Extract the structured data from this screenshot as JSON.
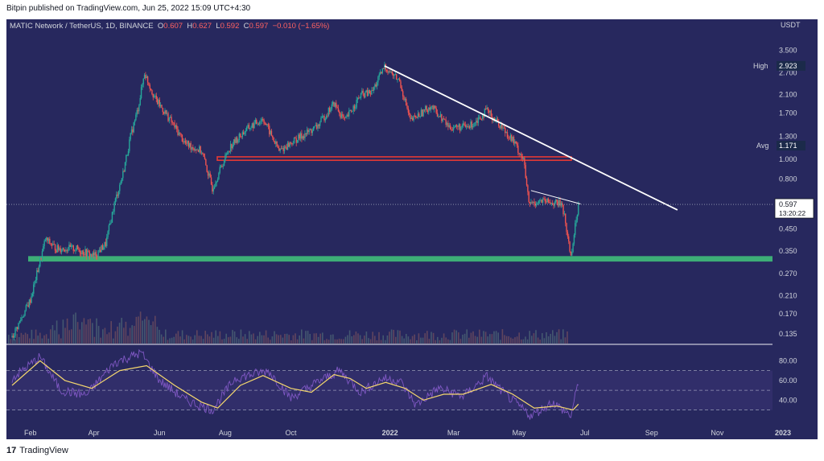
{
  "caption": "Bitpin published on TradingView.com, Jun 25, 2022 15:09 UTC+4:30",
  "brand": {
    "logo": "17",
    "name": "TradingView"
  },
  "symbol": {
    "name": "MATIC Network / TetherUS, 1D, BINANCE",
    "o_label": "O",
    "o": "0.607",
    "h_label": "H",
    "h": "0.627",
    "l_label": "L",
    "l": "0.592",
    "c_label": "C",
    "c": "0.597",
    "change": "−0.010 (−1.65%)"
  },
  "price_axis": {
    "unit": "USDT",
    "ticks": [
      "3.500",
      "2.700",
      "2.100",
      "1.700",
      "1.300",
      "1.000",
      "0.800",
      "0.600",
      "0.450",
      "0.350",
      "0.270",
      "0.210",
      "0.170",
      "0.135"
    ],
    "high_label": "High",
    "high_value": "2.923",
    "avg_label": "Avg",
    "avg_value": "1.171",
    "last_price": "0.597",
    "countdown": "13:20:22"
  },
  "rsi_axis": {
    "ticks": [
      "80.00",
      "60.00",
      "40.00"
    ]
  },
  "time_axis": {
    "ticks": [
      "Feb",
      "Apr",
      "Jun",
      "Aug",
      "Oct",
      "2022",
      "Mar",
      "May",
      "Jul",
      "Sep",
      "Nov",
      "2023"
    ]
  },
  "colors": {
    "background": "#27285e",
    "up": "#26a69a",
    "down": "#ef5350",
    "trendline": "#ffffff",
    "support_zone": "#3dae77",
    "resistance_zone": "#e53935",
    "rsi": "#7e57c2",
    "rsi_ma": "#f5d76e"
  },
  "chart_data": {
    "type": "candlestick",
    "title": "MATIC Network / TetherUS, 1D, BINANCE",
    "y_scale": "log",
    "ylim": [
      0.12,
      4.3
    ],
    "price_path": [
      {
        "x": "2021-01-15",
        "y": 0.13
      },
      {
        "x": "2021-02-01",
        "y": 0.2
      },
      {
        "x": "2021-02-15",
        "y": 0.4
      },
      {
        "x": "2021-02-25",
        "y": 0.36
      },
      {
        "x": "2021-03-15",
        "y": 0.36
      },
      {
        "x": "2021-04-01",
        "y": 0.33
      },
      {
        "x": "2021-04-12",
        "y": 0.38
      },
      {
        "x": "2021-04-20",
        "y": 0.6
      },
      {
        "x": "2021-04-28",
        "y": 0.85
      },
      {
        "x": "2021-05-05",
        "y": 1.3
      },
      {
        "x": "2021-05-12",
        "y": 1.8
      },
      {
        "x": "2021-05-18",
        "y": 2.7
      },
      {
        "x": "2021-05-28",
        "y": 2.0
      },
      {
        "x": "2021-06-10",
        "y": 1.6
      },
      {
        "x": "2021-06-25",
        "y": 1.2
      },
      {
        "x": "2021-07-10",
        "y": 1.1
      },
      {
        "x": "2021-07-20",
        "y": 0.72
      },
      {
        "x": "2021-08-05",
        "y": 1.15
      },
      {
        "x": "2021-08-20",
        "y": 1.4
      },
      {
        "x": "2021-09-05",
        "y": 1.6
      },
      {
        "x": "2021-09-20",
        "y": 1.1
      },
      {
        "x": "2021-10-05",
        "y": 1.25
      },
      {
        "x": "2021-10-25",
        "y": 1.45
      },
      {
        "x": "2021-11-10",
        "y": 1.9
      },
      {
        "x": "2021-11-20",
        "y": 1.55
      },
      {
        "x": "2021-12-05",
        "y": 2.1
      },
      {
        "x": "2021-12-15",
        "y": 2.15
      },
      {
        "x": "2021-12-27",
        "y": 2.9
      },
      {
        "x": "2022-01-10",
        "y": 2.45
      },
      {
        "x": "2022-01-20",
        "y": 1.55
      },
      {
        "x": "2022-02-08",
        "y": 1.85
      },
      {
        "x": "2022-02-25",
        "y": 1.45
      },
      {
        "x": "2022-03-15",
        "y": 1.45
      },
      {
        "x": "2022-04-01",
        "y": 1.75
      },
      {
        "x": "2022-04-15",
        "y": 1.45
      },
      {
        "x": "2022-04-25",
        "y": 1.25
      },
      {
        "x": "2022-05-05",
        "y": 1.0
      },
      {
        "x": "2022-05-10",
        "y": 0.6
      },
      {
        "x": "2022-05-20",
        "y": 0.62
      },
      {
        "x": "2022-06-10",
        "y": 0.6
      },
      {
        "x": "2022-06-18",
        "y": 0.33
      },
      {
        "x": "2022-06-25",
        "y": 0.597
      }
    ],
    "support_zone": [
      0.31,
      0.33
    ],
    "resistance_zone": [
      0.99,
      1.03
    ],
    "main_trendline": [
      {
        "x": "2021-12-27",
        "y": 2.92
      },
      {
        "x": "2022-09-25",
        "y": 0.56
      }
    ],
    "short_trendline": [
      {
        "x": "2022-05-12",
        "y": 0.7
      },
      {
        "x": "2022-06-27",
        "y": 0.6
      }
    ],
    "rsi": {
      "ylim": [
        15,
        95
      ],
      "levels": [
        70,
        50,
        30
      ],
      "path": [
        {
          "x": "2021-01-15",
          "y": 62
        },
        {
          "x": "2021-02-10",
          "y": 84
        },
        {
          "x": "2021-03-01",
          "y": 50
        },
        {
          "x": "2021-03-25",
          "y": 45
        },
        {
          "x": "2021-04-20",
          "y": 78
        },
        {
          "x": "2021-05-15",
          "y": 88
        },
        {
          "x": "2021-06-01",
          "y": 60
        },
        {
          "x": "2021-06-25",
          "y": 40
        },
        {
          "x": "2021-07-20",
          "y": 30
        },
        {
          "x": "2021-08-10",
          "y": 62
        },
        {
          "x": "2021-09-10",
          "y": 70
        },
        {
          "x": "2021-10-01",
          "y": 42
        },
        {
          "x": "2021-10-25",
          "y": 58
        },
        {
          "x": "2021-11-15",
          "y": 70
        },
        {
          "x": "2021-12-05",
          "y": 48
        },
        {
          "x": "2021-12-25",
          "y": 62
        },
        {
          "x": "2022-01-10",
          "y": 60
        },
        {
          "x": "2022-01-25",
          "y": 35
        },
        {
          "x": "2022-02-15",
          "y": 52
        },
        {
          "x": "2022-03-10",
          "y": 44
        },
        {
          "x": "2022-04-01",
          "y": 64
        },
        {
          "x": "2022-04-20",
          "y": 44
        },
        {
          "x": "2022-05-12",
          "y": 24
        },
        {
          "x": "2022-06-01",
          "y": 38
        },
        {
          "x": "2022-06-18",
          "y": 24
        },
        {
          "x": "2022-06-25",
          "y": 58
        }
      ],
      "ma_path": [
        {
          "x": "2021-01-15",
          "y": 55
        },
        {
          "x": "2021-02-10",
          "y": 80
        },
        {
          "x": "2021-03-05",
          "y": 60
        },
        {
          "x": "2021-03-30",
          "y": 52
        },
        {
          "x": "2021-04-25",
          "y": 70
        },
        {
          "x": "2021-05-20",
          "y": 75
        },
        {
          "x": "2021-06-15",
          "y": 55
        },
        {
          "x": "2021-07-10",
          "y": 38
        },
        {
          "x": "2021-07-25",
          "y": 32
        },
        {
          "x": "2021-08-15",
          "y": 55
        },
        {
          "x": "2021-09-05",
          "y": 65
        },
        {
          "x": "2021-10-01",
          "y": 52
        },
        {
          "x": "2021-10-20",
          "y": 48
        },
        {
          "x": "2021-11-10",
          "y": 66
        },
        {
          "x": "2021-11-25",
          "y": 62
        },
        {
          "x": "2021-12-10",
          "y": 52
        },
        {
          "x": "2021-12-28",
          "y": 58
        },
        {
          "x": "2022-01-15",
          "y": 52
        },
        {
          "x": "2022-02-01",
          "y": 40
        },
        {
          "x": "2022-02-20",
          "y": 46
        },
        {
          "x": "2022-03-10",
          "y": 46
        },
        {
          "x": "2022-04-05",
          "y": 56
        },
        {
          "x": "2022-04-25",
          "y": 46
        },
        {
          "x": "2022-05-15",
          "y": 32
        },
        {
          "x": "2022-06-05",
          "y": 34
        },
        {
          "x": "2022-06-20",
          "y": 30
        },
        {
          "x": "2022-06-25",
          "y": 36
        }
      ]
    }
  }
}
